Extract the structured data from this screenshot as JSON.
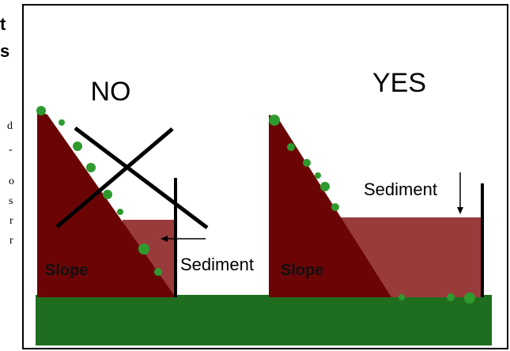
{
  "side_text": {
    "heading": [
      "t",
      "s"
    ],
    "body": [
      "d",
      "-",
      "o",
      "s",
      "r",
      "r"
    ]
  },
  "diagram": {
    "left": {
      "title": "NO",
      "slope_label": "Slope",
      "sediment_label": "Sediment"
    },
    "right": {
      "title": "YES",
      "slope_label": "Slope",
      "sediment_label": "Sediment"
    }
  }
}
